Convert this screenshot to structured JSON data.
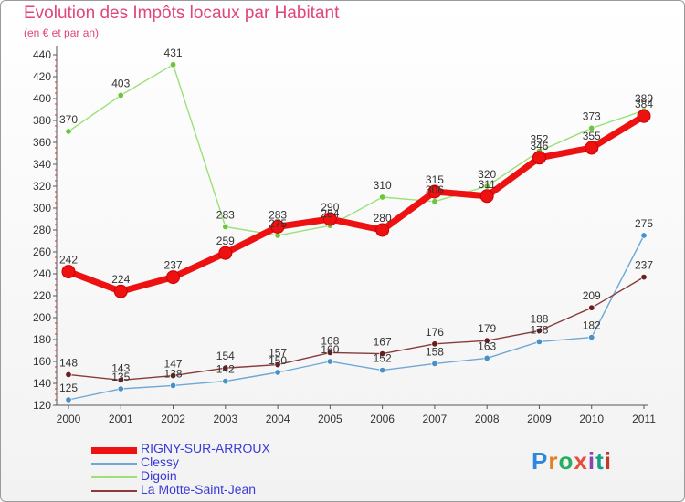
{
  "title": "Evolution des Impôts locaux par Habitant",
  "subtitle": "(en € et par an)",
  "logo": {
    "text": "Proxiti",
    "colors": [
      "#2e86de",
      "#e67e22",
      "#27ae60",
      "#e74c3c",
      "#8e44ad",
      "#16a085",
      "#c0392b"
    ]
  },
  "chart_data": {
    "type": "line",
    "title": "Evolution des Impôts locaux par Habitant",
    "ylabel": "(en € et par an)",
    "xlabel": "",
    "ylim": [
      120,
      440
    ],
    "yticks": [
      120,
      140,
      160,
      180,
      200,
      220,
      240,
      260,
      280,
      300,
      320,
      340,
      360,
      380,
      400,
      420,
      440
    ],
    "categories": [
      "2000",
      "2001",
      "2002",
      "2003",
      "2004",
      "2005",
      "2006",
      "2007",
      "2008",
      "2009",
      "2010",
      "2011"
    ],
    "series": [
      {
        "name": "Clessy",
        "color": "#6fa8d6",
        "marker": "#4a90c8",
        "width": 1.4,
        "r": 3.2,
        "values": [
          125,
          135,
          138,
          142,
          150,
          160,
          152,
          158,
          163,
          178,
          182,
          275
        ]
      },
      {
        "name": "Digoin",
        "color": "#9be07a",
        "marker": "#6cc63c",
        "width": 1.4,
        "r": 3.2,
        "values": [
          370,
          403,
          431,
          283,
          275,
          284,
          310,
          306,
          320,
          352,
          373,
          389
        ]
      },
      {
        "name": "La Motte-Saint-Jean",
        "color": "#8a3a3a",
        "marker": "#6a1f1f",
        "width": 1.4,
        "r": 3.2,
        "values": [
          148,
          143,
          147,
          154,
          157,
          168,
          167,
          176,
          179,
          188,
          209,
          237
        ]
      },
      {
        "name": "RIGNY-SUR-ARROUX",
        "color": "#ee1111",
        "marker": "#ee1111",
        "width": 7,
        "r": 7,
        "values": [
          242,
          224,
          237,
          259,
          283,
          290,
          280,
          315,
          311,
          346,
          355,
          384
        ]
      }
    ],
    "data_labels": {
      "RIGNY-SUR-ARROUX": [
        "242",
        "224",
        "237",
        "259",
        "283",
        "290",
        "280",
        "315",
        "311",
        "346",
        "355",
        "384"
      ],
      "Clessy": [
        "125",
        "135",
        "138",
        "142",
        "150",
        "160",
        "152",
        "158",
        "163",
        "178",
        "182",
        "275"
      ],
      "Digoin": [
        "370",
        "403",
        "431",
        "283",
        "275",
        "284",
        "310",
        "306",
        "320",
        "352",
        "373",
        "389"
      ],
      "La Motte-Saint-Jean": [
        "148",
        "143",
        "147",
        "154",
        "157",
        "168",
        "167",
        "176",
        "179",
        "188",
        "209",
        "237"
      ]
    },
    "legend": [
      {
        "name": "RIGNY-SUR-ARROUX",
        "color": "#ee1111",
        "text_color": "#3a3ad8"
      },
      {
        "name": "Clessy",
        "color": "#6fa8d6",
        "text_color": "#3a3ad8"
      },
      {
        "name": "Digoin",
        "color": "#9be07a",
        "text_color": "#3a3ad8"
      },
      {
        "name": "La Motte-Saint-Jean",
        "color": "#8a3a3a",
        "text_color": "#3a3ad8"
      }
    ],
    "legend_position": "bottom-left",
    "grid": false
  }
}
